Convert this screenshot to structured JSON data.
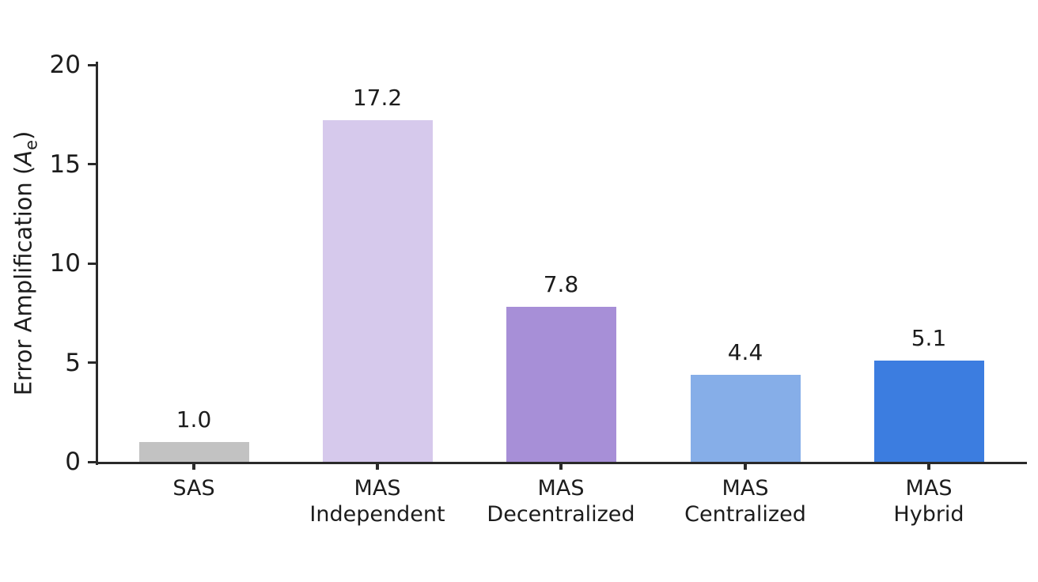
{
  "chart_data": {
    "type": "bar",
    "categories": [
      "SAS",
      "MAS\nIndependent",
      "MAS\nDecentralized",
      "MAS\nCentralized",
      "MAS\nHybrid"
    ],
    "values": [
      1.0,
      17.2,
      7.8,
      4.4,
      5.1
    ],
    "value_labels": [
      "1.0",
      "17.2",
      "7.8",
      "4.4",
      "5.1"
    ],
    "bar_colors": [
      "#c2c2c2",
      "#d6c9ec",
      "#a78fd7",
      "#86aee8",
      "#3c7de0"
    ],
    "title": "",
    "xlabel": "",
    "ylabel": "Error Amplification (A_e)",
    "ylabel_parts": {
      "prefix": "Error Amplification (",
      "var": "A",
      "sub": "e",
      "suffix": ")"
    },
    "yticks": [
      "0",
      "5",
      "10",
      "15",
      "20"
    ],
    "ytick_values": [
      0,
      5,
      10,
      15,
      20
    ],
    "ylim": [
      0,
      20
    ],
    "grid": false,
    "legend": null
  },
  "colors": {
    "axis": "#2a2a2a",
    "text": "#1c1c1c",
    "background": "#ffffff"
  }
}
